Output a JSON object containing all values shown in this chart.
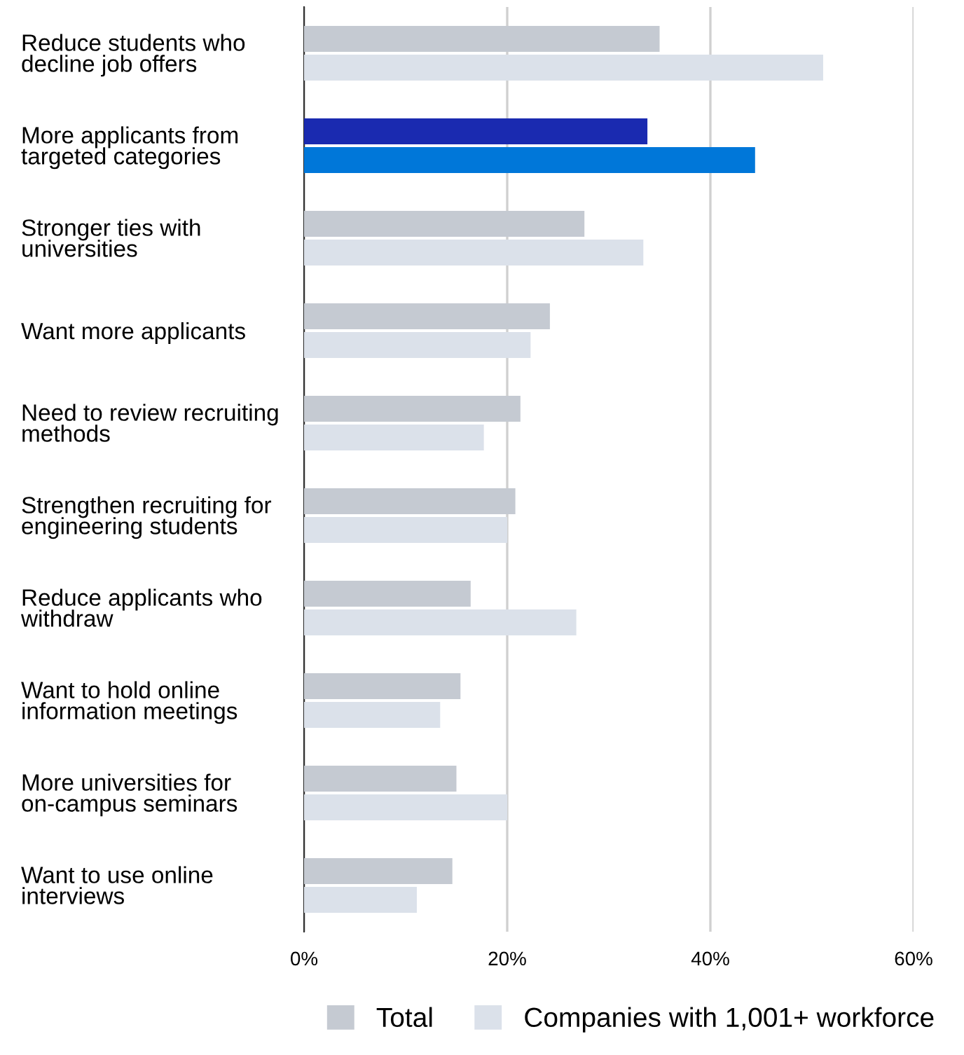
{
  "chart_data": {
    "type": "bar",
    "orientation": "horizontal",
    "categories": [
      "Reduce students who decline job offers",
      "More applicants from targeted categories",
      "Stronger ties with universities",
      "Want more applicants",
      "Need to review recruiting methods",
      "Strengthen recruiting for engineering students",
      "Reduce applicants who withdraw",
      "Want to hold online information meetings",
      "More universities for on-campus seminars",
      "Want to use online interviews"
    ],
    "series": [
      {
        "name": "Total",
        "color": "#c5cad2",
        "colors": [
          "#c5cad2",
          "#1a2ab0",
          "#c5cad2",
          "#c5cad2",
          "#c5cad2",
          "#c5cad2",
          "#c5cad2",
          "#c5cad2",
          "#c5cad2",
          "#c5cad2"
        ],
        "values": [
          35.0,
          33.8,
          27.6,
          24.2,
          21.3,
          20.8,
          16.4,
          15.4,
          15.0,
          14.6
        ]
      },
      {
        "name": "Companies with 1,001+ workforce",
        "color": "#dbe1ea",
        "colors": [
          "#dbe1ea",
          "#0077d9",
          "#dbe1ea",
          "#dbe1ea",
          "#dbe1ea",
          "#dbe1ea",
          "#dbe1ea",
          "#dbe1ea",
          "#dbe1ea",
          "#dbe1ea"
        ],
        "values": [
          51.1,
          44.4,
          33.4,
          22.3,
          17.7,
          20.0,
          26.8,
          13.4,
          20.0,
          11.1
        ]
      }
    ],
    "xlim": [
      0,
      60
    ],
    "xticks": [
      {
        "value": 0,
        "label": "0%"
      },
      {
        "value": 20,
        "label": "20%"
      },
      {
        "value": 40,
        "label": "40%"
      },
      {
        "value": 60,
        "label": "60%"
      }
    ],
    "grid": "x",
    "legend": "bottom right"
  }
}
